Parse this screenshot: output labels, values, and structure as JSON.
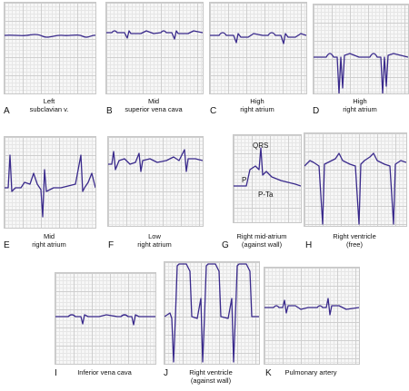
{
  "panels": [
    {
      "letter": "A",
      "caption_line1": "Left",
      "caption_line2": "subclavian v."
    },
    {
      "letter": "B",
      "caption_line1": "Mid",
      "caption_line2": "superior vena cava"
    },
    {
      "letter": "C",
      "caption_line1": "High",
      "caption_line2": "right atrium"
    },
    {
      "letter": "D",
      "caption_line1": "High",
      "caption_line2": "right atrium"
    },
    {
      "letter": "E",
      "caption_line1": "Mid",
      "caption_line2": "right atrium"
    },
    {
      "letter": "F",
      "caption_line1": "Low",
      "caption_line2": "right atrium"
    },
    {
      "letter": "G",
      "caption_line1": "Right mid-atrium",
      "caption_line2": "(against wall)"
    },
    {
      "letter": "H",
      "caption_line1": "Right ventricle",
      "caption_line2": "(free)"
    },
    {
      "letter": "I",
      "caption_line1": "Inferior vena cava",
      "caption_line2": ""
    },
    {
      "letter": "J",
      "caption_line1": "Right ventricle",
      "caption_line2": "(against wall)"
    },
    {
      "letter": "K",
      "caption_line1": "Pulmonary artery",
      "caption_line2": ""
    }
  ],
  "wave_labels": {
    "qrs": "QRS",
    "p": "P",
    "pta": "P-Ta"
  },
  "colors": {
    "trace": "#3a2a8c",
    "grid_major": "#cfcfcf",
    "grid_minor": "#e6e6e6"
  }
}
